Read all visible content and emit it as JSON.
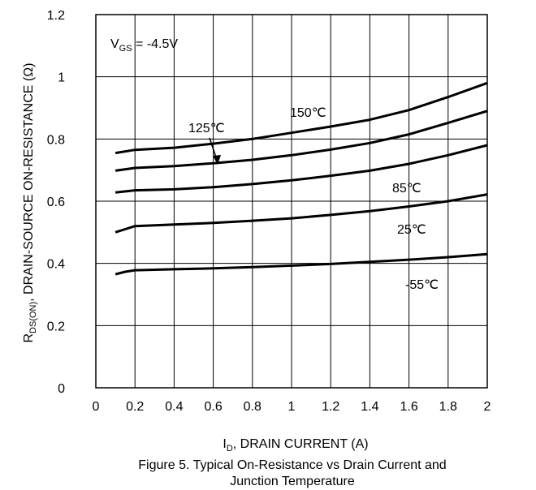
{
  "chart_data": {
    "type": "line",
    "xlabel": {
      "main": "I",
      "sub": "D",
      "rest": ", DRAIN CURRENT (A)"
    },
    "ylabel": {
      "main": "R",
      "sub": "DS(ON)",
      "rest": ",  DRAIN-SOURCE ON-RESISTANCE (Ω)"
    },
    "annotation": {
      "main": "V",
      "sub": "GS",
      "rest": " = -4.5V"
    },
    "xlim": [
      0,
      2
    ],
    "ylim": [
      0,
      1.2
    ],
    "xticks": [
      "0",
      "0.2",
      "0.4",
      "0.6",
      "0.8",
      "1",
      "1.2",
      "1.4",
      "1.6",
      "1.8",
      "2"
    ],
    "yticks": [
      "0",
      "0.2",
      "0.4",
      "0.6",
      "0.8",
      "1",
      "1.2"
    ],
    "grid": true,
    "series": [
      {
        "name": "150°C",
        "x": [
          0.1,
          0.2,
          0.4,
          0.6,
          0.8,
          1.0,
          1.2,
          1.4,
          1.6,
          1.8,
          2.0
        ],
        "y": [
          0.755,
          0.765,
          0.772,
          0.785,
          0.8,
          0.82,
          0.84,
          0.862,
          0.893,
          0.935,
          0.98
        ]
      },
      {
        "name": "125°C",
        "x": [
          0.1,
          0.2,
          0.4,
          0.6,
          0.8,
          1.0,
          1.2,
          1.4,
          1.6,
          1.8,
          2.0
        ],
        "y": [
          0.698,
          0.707,
          0.713,
          0.722,
          0.733,
          0.748,
          0.766,
          0.787,
          0.815,
          0.852,
          0.89
        ]
      },
      {
        "name": "85°C",
        "x": [
          0.1,
          0.2,
          0.4,
          0.6,
          0.8,
          1.0,
          1.2,
          1.4,
          1.6,
          1.8,
          2.0
        ],
        "y": [
          0.628,
          0.635,
          0.638,
          0.645,
          0.655,
          0.667,
          0.682,
          0.698,
          0.72,
          0.748,
          0.78
        ]
      },
      {
        "name": "25°C",
        "x": [
          0.1,
          0.15,
          0.2,
          0.4,
          0.6,
          0.8,
          1.0,
          1.2,
          1.4,
          1.6,
          1.8,
          2.0
        ],
        "y": [
          0.5,
          0.51,
          0.52,
          0.525,
          0.53,
          0.537,
          0.545,
          0.556,
          0.568,
          0.583,
          0.6,
          0.622
        ]
      },
      {
        "name": "-55°C",
        "x": [
          0.1,
          0.15,
          0.2,
          0.4,
          0.6,
          0.8,
          1.0,
          1.2,
          1.4,
          1.6,
          1.8,
          2.0
        ],
        "y": [
          0.365,
          0.373,
          0.378,
          0.381,
          0.384,
          0.388,
          0.393,
          0.398,
          0.405,
          0.412,
          0.42,
          0.43
        ]
      }
    ],
    "series_labels": [
      "150℃",
      "125℃",
      "85℃",
      "25℃",
      "-55℃"
    ],
    "caption": [
      "Figure 5. Typical On-Resistance vs Drain Current and",
      "Junction Temperature"
    ]
  }
}
